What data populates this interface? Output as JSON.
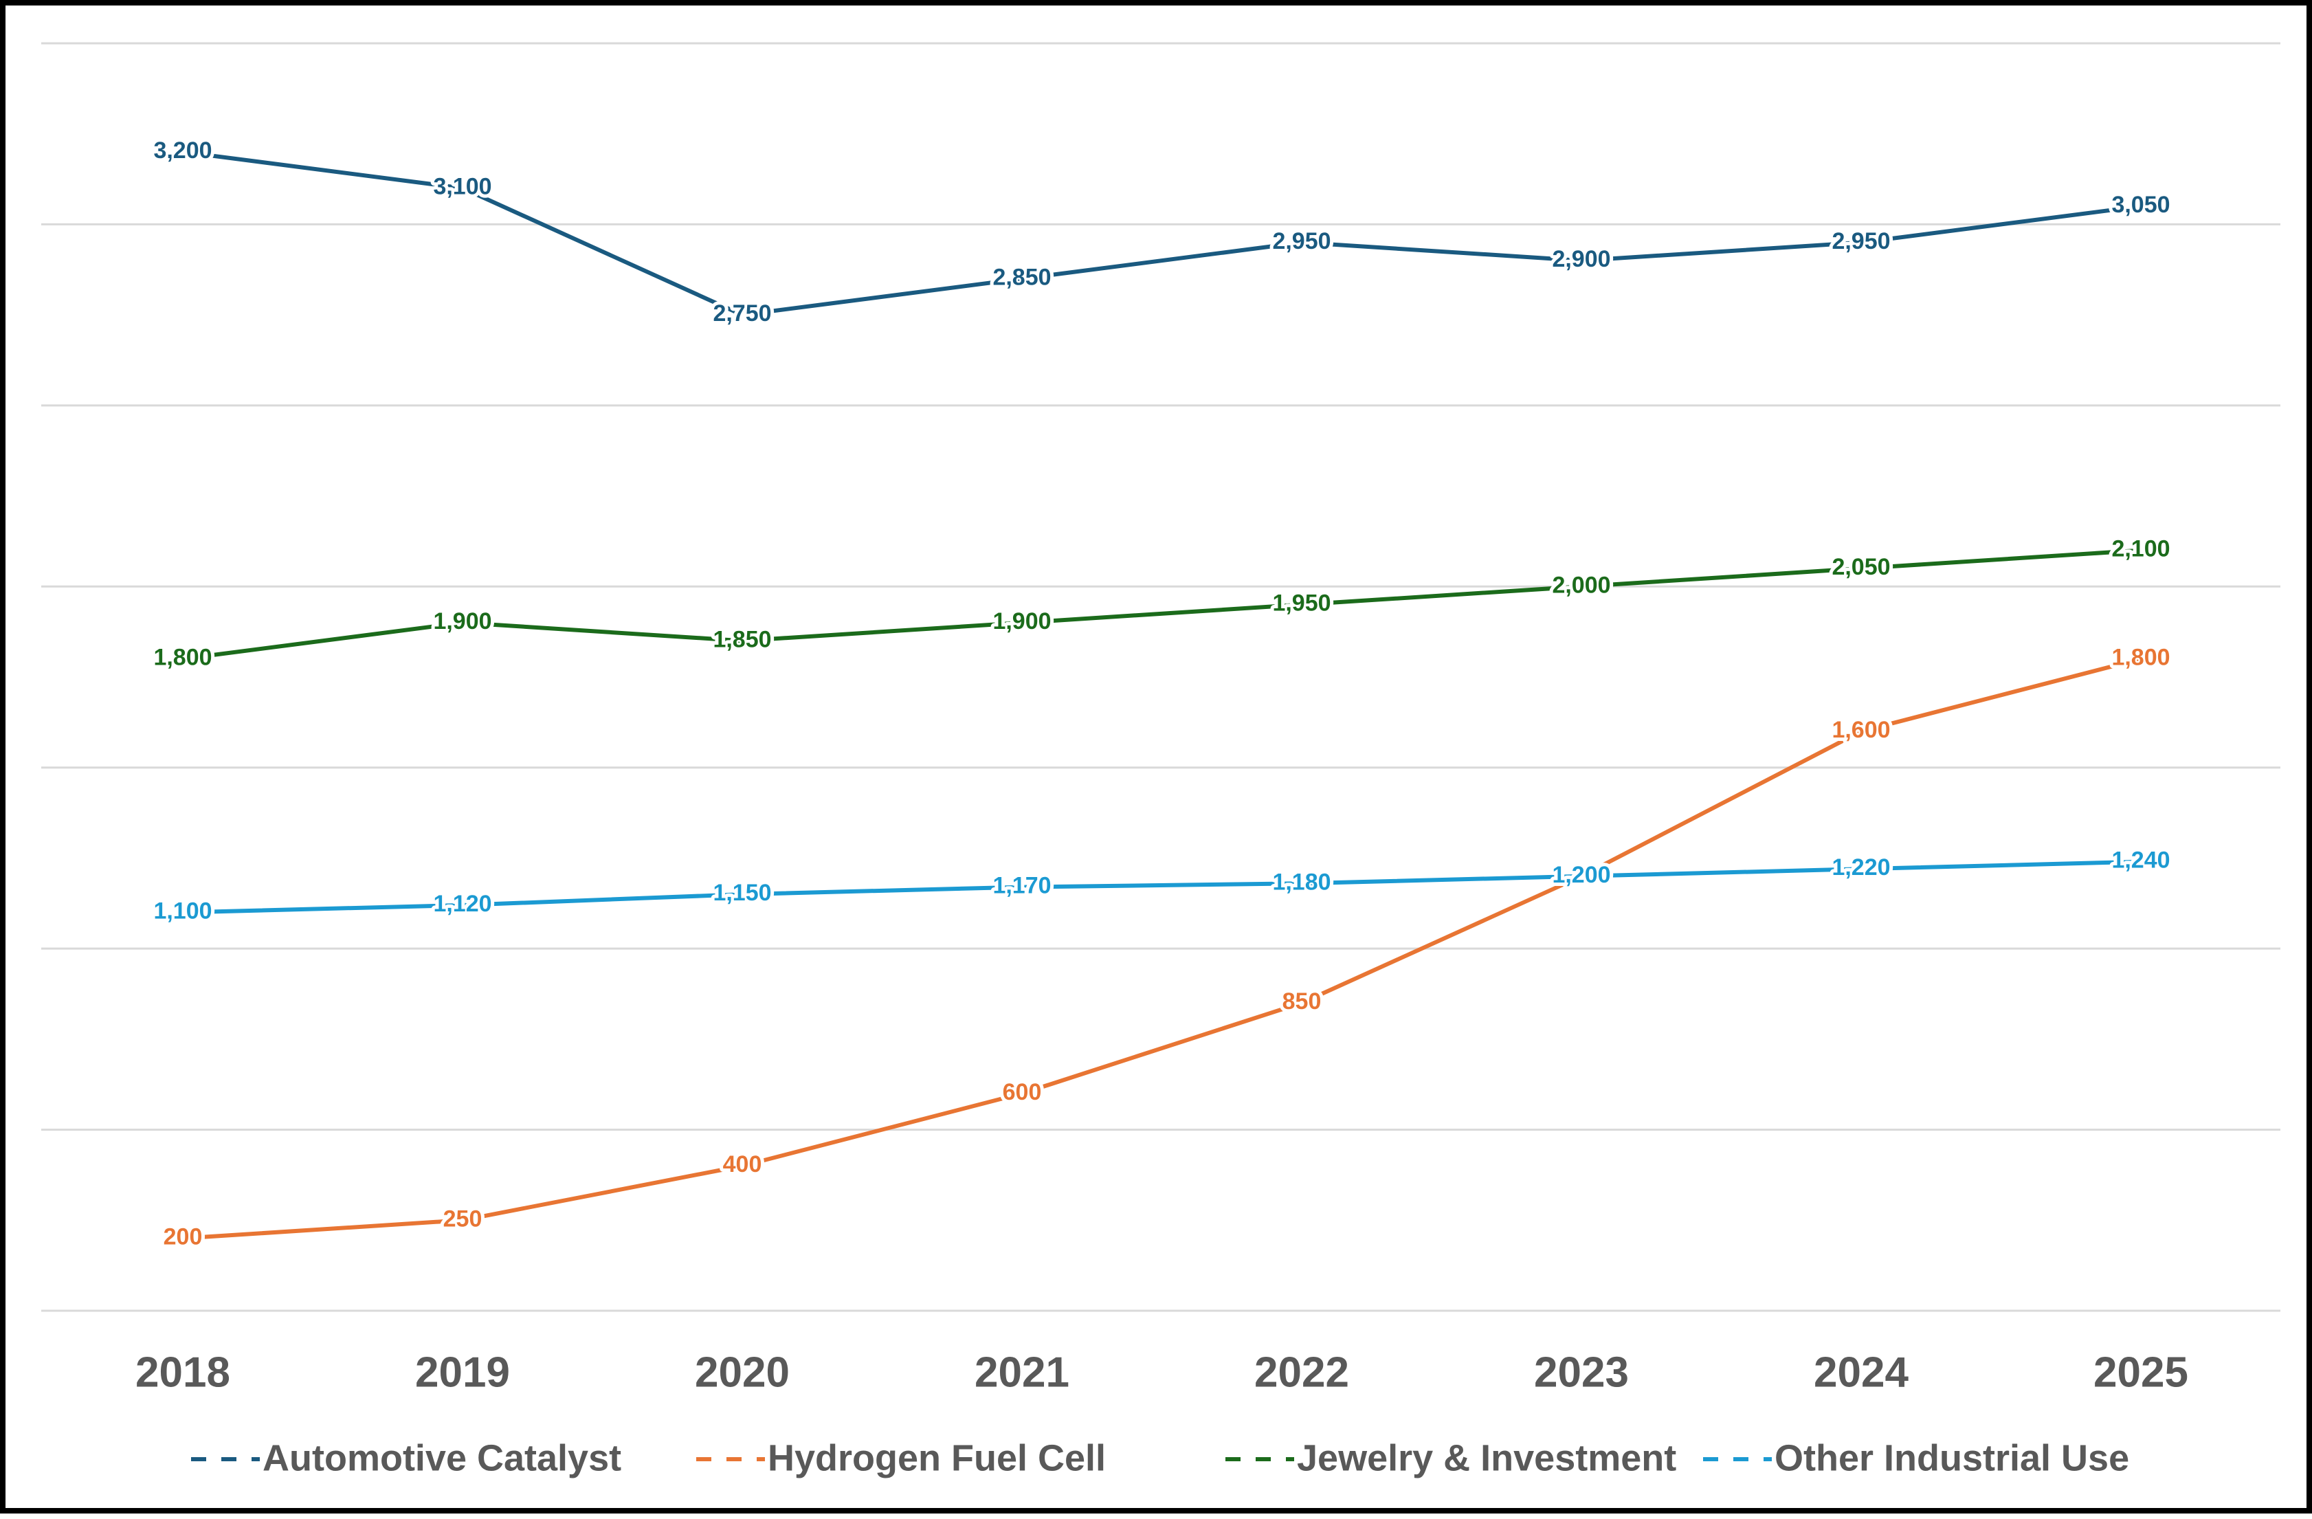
{
  "chart_data": {
    "type": "line",
    "title": "",
    "xlabel": "",
    "ylabel": "",
    "ylim": [
      0,
      3500
    ],
    "grid": true,
    "legend_position": "bottom",
    "categories": [
      "2018",
      "2019",
      "2020",
      "2021",
      "2022",
      "2023",
      "2024",
      "2025"
    ],
    "series": [
      {
        "name": "Automotive Catalyst",
        "color": "#1a5a80",
        "values": [
          3200,
          3100,
          2750,
          2850,
          2950,
          2900,
          2950,
          3050
        ],
        "labels": [
          "3,200",
          "3,100",
          "2,750",
          "2,850",
          "2,950",
          "2,900",
          "2,950",
          "3,050"
        ]
      },
      {
        "name": "Hydrogen Fuel Cell",
        "color": "#e87533",
        "values": [
          200,
          250,
          400,
          600,
          850,
          1200,
          1600,
          1800
        ],
        "labels": [
          "200",
          "250",
          "400",
          "600",
          "850",
          "1,200",
          "1,600",
          "1,800"
        ]
      },
      {
        "name": "Jewelry & Investment",
        "color": "#1b6b1b",
        "values": [
          1800,
          1900,
          1850,
          1900,
          1950,
          2000,
          2050,
          2100
        ],
        "labels": [
          "1,800",
          "1,900",
          "1,850",
          "1,900",
          "1,950",
          "2,000",
          "2,050",
          "2,100"
        ]
      },
      {
        "name": "Other Industrial Use",
        "color": "#1b9ad2",
        "values": [
          1100,
          1120,
          1150,
          1170,
          1180,
          1200,
          1220,
          1240
        ],
        "labels": [
          "1,100",
          "1,120",
          "1,150",
          "1,170",
          "1,180",
          "1,200",
          "1,220",
          "1,240"
        ]
      }
    ]
  }
}
